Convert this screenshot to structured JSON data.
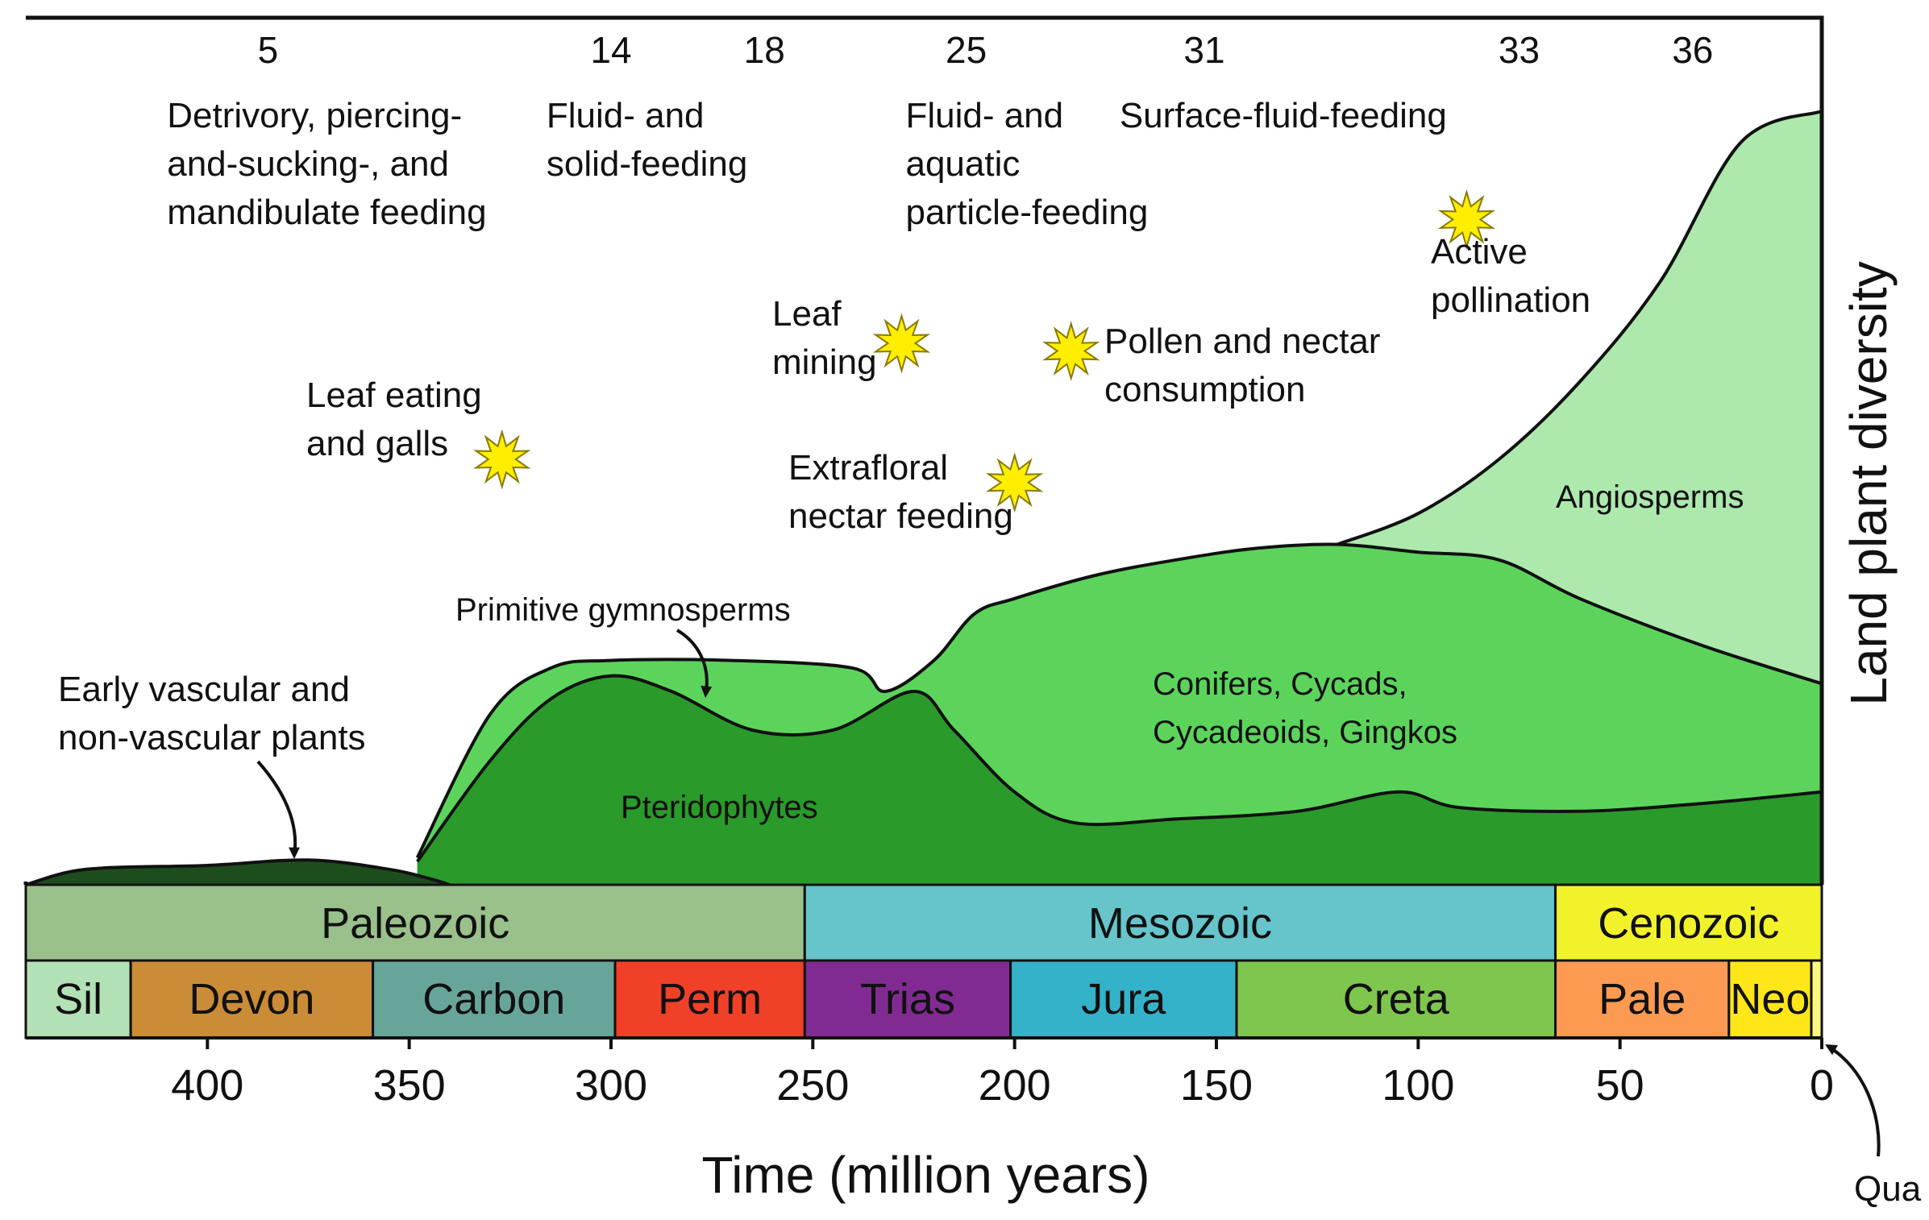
{
  "chart_data": {
    "type": "area",
    "title": "",
    "xlabel": "Time (million years)",
    "ylabel": "Land plant diversity",
    "xlim": [
      445,
      0
    ],
    "x_ticks": [
      400,
      350,
      300,
      250,
      200,
      150,
      100,
      50,
      0
    ],
    "stage_numbers": [
      {
        "label": "5",
        "time": 385
      },
      {
        "label": "14",
        "time": 300
      },
      {
        "label": "18",
        "time": 262
      },
      {
        "label": "25",
        "time": 212
      },
      {
        "label": "31",
        "time": 153
      },
      {
        "label": "33",
        "time": 75
      },
      {
        "label": "36",
        "time": 32
      }
    ],
    "feeding_modes": [
      {
        "lines": [
          "Detrivory, piercing-",
          "and-sucking-, and",
          "mandibulate feeding"
        ],
        "time": 410
      },
      {
        "lines": [
          "Fluid- and",
          "solid-feeding"
        ],
        "time": 316
      },
      {
        "lines": [
          "Fluid- and",
          "aquatic",
          "particle-feeding"
        ],
        "time": 227
      },
      {
        "lines": [
          "Surface-fluid-feeding"
        ],
        "time": 174
      }
    ],
    "origination_events": [
      {
        "lines": [
          "Leaf eating",
          "and galls"
        ],
        "time": 327,
        "level": 0.55
      },
      {
        "lines": [
          "Leaf",
          "mining"
        ],
        "time": 228,
        "level": 0.7
      },
      {
        "lines": [
          "Extrafloral",
          "nectar feeding"
        ],
        "time": 200,
        "level": 0.52
      },
      {
        "lines": [
          "Pollen and nectar",
          "consumption"
        ],
        "time": 186,
        "level": 0.69
      },
      {
        "lines": [
          "Active",
          "pollination"
        ],
        "time": 88,
        "level": 0.86
      }
    ],
    "series": [
      {
        "name": "Early vascular and non-vascular plants",
        "color": "#1d4d1d",
        "points": [
          [
            445,
            0.0
          ],
          [
            430,
            0.02
          ],
          [
            400,
            0.025
          ],
          [
            375,
            0.032
          ],
          [
            355,
            0.02
          ],
          [
            345,
            0.008
          ],
          [
            340,
            0.0
          ]
        ]
      },
      {
        "name": "Pteridophytes",
        "color": "#2a9a2a",
        "points": [
          [
            348,
            0.03
          ],
          [
            330,
            0.16
          ],
          [
            315,
            0.24
          ],
          [
            300,
            0.27
          ],
          [
            285,
            0.25
          ],
          [
            265,
            0.2
          ],
          [
            245,
            0.2
          ],
          [
            225,
            0.25
          ],
          [
            215,
            0.2
          ],
          [
            200,
            0.12
          ],
          [
            185,
            0.08
          ],
          [
            160,
            0.085
          ],
          [
            130,
            0.095
          ],
          [
            105,
            0.12
          ],
          [
            90,
            0.1
          ],
          [
            60,
            0.095
          ],
          [
            30,
            0.105
          ],
          [
            0,
            0.12
          ]
        ]
      },
      {
        "name": "Primitive gymnosperms",
        "color": "#5cd45c",
        "points": [
          [
            348,
            0.035
          ],
          [
            330,
            0.22
          ],
          [
            315,
            0.28
          ],
          [
            300,
            0.29
          ],
          [
            270,
            0.29
          ],
          [
            240,
            0.28
          ],
          [
            232,
            0.25
          ],
          [
            220,
            0.29
          ],
          [
            210,
            0.35
          ],
          [
            200,
            0.37
          ]
        ]
      },
      {
        "name": "Conifers, Cycads, Cycadeoids, Gingkos",
        "color": "#5cd45c",
        "points": [
          [
            200,
            0.37
          ],
          [
            180,
            0.4
          ],
          [
            160,
            0.42
          ],
          [
            140,
            0.435
          ],
          [
            120,
            0.44
          ],
          [
            100,
            0.43
          ],
          [
            80,
            0.42
          ],
          [
            60,
            0.37
          ],
          [
            30,
            0.31
          ],
          [
            0,
            0.26
          ]
        ]
      },
      {
        "name": "Angiosperms",
        "color": "#ade8ad",
        "points": [
          [
            120,
            0.44
          ],
          [
            100,
            0.48
          ],
          [
            80,
            0.55
          ],
          [
            60,
            0.65
          ],
          [
            40,
            0.78
          ],
          [
            20,
            0.96
          ],
          [
            0,
            1.0
          ]
        ]
      }
    ],
    "area_labels": [
      {
        "name": "Early vascular and non-vascular plants",
        "lines": [
          "Early vascular and",
          "non-vascular plants"
        ]
      },
      {
        "name": "Primitive gymnosperms",
        "lines": [
          "Primitive gymnosperms"
        ]
      },
      {
        "name": "Pteridophytes",
        "lines": [
          "Pteridophytes"
        ]
      },
      {
        "name": "Conifers, Cycads, Cycadeoids, Gingkos",
        "lines": [
          "Conifers, Cycads,",
          "Cycadeoids, Gingkos"
        ]
      },
      {
        "name": "Angiosperms",
        "lines": [
          "Angiosperms"
        ]
      }
    ],
    "eras": [
      {
        "label": "Paleozoic",
        "start": 445,
        "end": 252,
        "color": "#9ac08b"
      },
      {
        "label": "Mesozoic",
        "start": 252,
        "end": 66,
        "color": "#66c5cb"
      },
      {
        "label": "Cenozoic",
        "start": 66,
        "end": 0,
        "color": "#f2f22a"
      }
    ],
    "periods": [
      {
        "label": "Sil",
        "start": 445,
        "end": 419,
        "color": "#b3e1b6"
      },
      {
        "label": "Devon",
        "start": 419,
        "end": 359,
        "color": "#cb8c37"
      },
      {
        "label": "Carbon",
        "start": 359,
        "end": 299,
        "color": "#67a599"
      },
      {
        "label": "Perm",
        "start": 299,
        "end": 252,
        "color": "#f04028"
      },
      {
        "label": "Trias",
        "start": 252,
        "end": 201,
        "color": "#812b92"
      },
      {
        "label": "Jura",
        "start": 201,
        "end": 145,
        "color": "#34b2c9"
      },
      {
        "label": "Creta",
        "start": 145,
        "end": 66,
        "color": "#7fc64e"
      },
      {
        "label": "Pale",
        "start": 66,
        "end": 23,
        "color": "#fd9a52"
      },
      {
        "label": "Neo",
        "start": 23,
        "end": 2.6,
        "color": "#ffe619"
      },
      {
        "label": "",
        "start": 2.6,
        "end": 0,
        "color": "#f9f97f"
      }
    ],
    "callout": "Qua"
  },
  "colors": {
    "outline": "#111111",
    "star": "#ffee00"
  }
}
